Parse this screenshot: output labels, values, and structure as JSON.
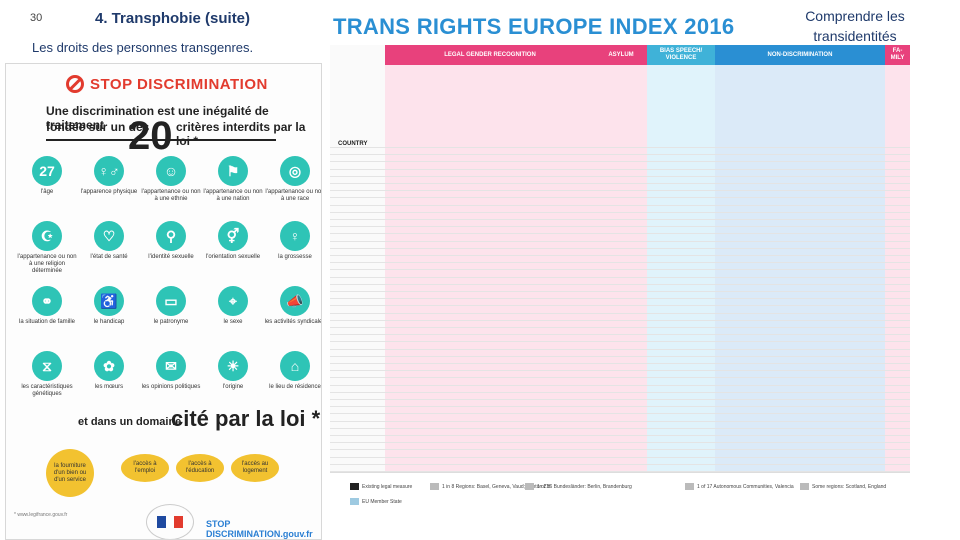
{
  "slide": {
    "number": "30",
    "title": "4. Transphobie (suite)",
    "subtitle": "Les droits des personnes transgenres.",
    "corner_title": "Comprendre les transidentités"
  },
  "poster": {
    "banner": "STOP DISCRIMINATION",
    "def_line1": "Une discrimination est une inégalité de traitement",
    "def_line2": "fondée sur un des",
    "big_number": "20",
    "def_line3": "critères interdits par la loi *",
    "criteria": [
      {
        "icon": "27",
        "label": "l'âge"
      },
      {
        "icon": "♀♂",
        "label": "l'apparence physique"
      },
      {
        "icon": "☺",
        "label": "l'appartenance ou non à une ethnie"
      },
      {
        "icon": "⚑",
        "label": "l'appartenance ou non à une nation"
      },
      {
        "icon": "◎",
        "label": "l'appartenance ou non à une race"
      },
      {
        "icon": "☪",
        "label": "l'appartenance ou non à une religion déterminée"
      },
      {
        "icon": "♡",
        "label": "l'état de santé"
      },
      {
        "icon": "⚲",
        "label": "l'identité sexuelle"
      },
      {
        "icon": "⚥",
        "label": "l'orientation sexuelle"
      },
      {
        "icon": "♀",
        "label": "la grossesse"
      },
      {
        "icon": "⚭",
        "label": "la situation de famille"
      },
      {
        "icon": "♿",
        "label": "le handicap"
      },
      {
        "icon": "▭",
        "label": "le patronyme"
      },
      {
        "icon": "⌖",
        "label": "le sexe"
      },
      {
        "icon": "📣",
        "label": "les activités syndicales"
      },
      {
        "icon": "⧖",
        "label": "les caractéristiques génétiques"
      },
      {
        "icon": "✿",
        "label": "les mœurs"
      },
      {
        "icon": "✉",
        "label": "les opinions politiques"
      },
      {
        "icon": "☀",
        "label": "l'origine"
      },
      {
        "icon": "⌂",
        "label": "le lieu de résidence"
      }
    ],
    "domain_title": "et dans un domaine",
    "big_cite": "cité par la loi *",
    "domains": [
      "la fourniture d'un bien ou d'un service",
      "l'accès à l'emploi",
      "l'accès à l'éducation",
      "l'accès au logement"
    ],
    "footnote": "* www.legifrance.gouv.fr",
    "stop_foot": "STOP DISCRIMINATION.gouv.fr"
  },
  "index": {
    "title": "TRANS RIGHTS EUROPE INDEX 2016",
    "headers": [
      {
        "label": "LEGAL GENDER RECOGNITION",
        "color": "#e8417c"
      },
      {
        "label": "ASYLUM",
        "color": "#e8417c"
      },
      {
        "label": "BIAS SPEECH/ VIOLENCE",
        "color": "#3fb2d8"
      },
      {
        "label": "NON-DISCRIMINATION",
        "color": "#2a8fd3"
      },
      {
        "label": "FA- MILY",
        "color": "#e8417c"
      }
    ],
    "country_label": "COUNTRY",
    "legend": [
      {
        "text": "Existing legal measure",
        "color": "#222222"
      },
      {
        "text": "EU Member State",
        "color": "#9ecae1"
      },
      {
        "text": "1 in 8 Regions: Basel, Geneva, Vaud; Kanton ZH",
        "color": "#bbbbbb"
      },
      {
        "text": "1 of 16 Bundesländer: Berlin, Brandenburg",
        "color": "#bbbbbb"
      },
      {
        "text": "1 of 17 Autonomous Communities, Valencia",
        "color": "#bbbbbb"
      },
      {
        "text": "Some regions: Scotland, England",
        "color": "#bbbbbb"
      }
    ]
  }
}
